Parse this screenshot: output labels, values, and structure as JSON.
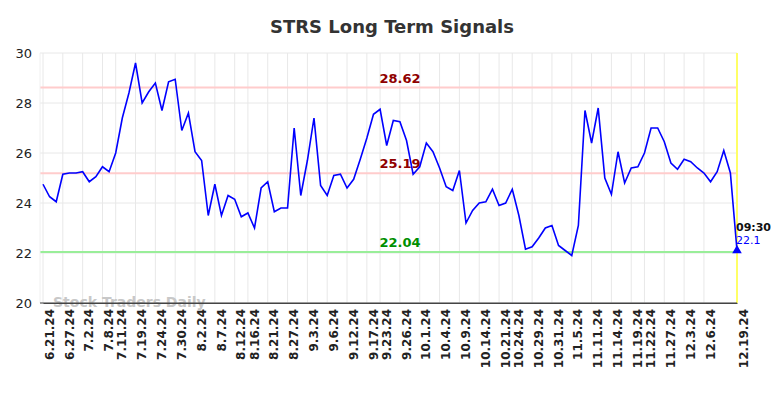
{
  "chart_data": {
    "type": "line",
    "title": "STRS Long Term Signals",
    "watermark": "Stock Traders Daily",
    "last_label": "09:30",
    "color": "#0000ff",
    "grid": true,
    "marker": "triangle",
    "ylim": [
      20,
      30
    ],
    "yticks": [
      20,
      22,
      24,
      26,
      28,
      30
    ],
    "reference_lines": [
      {
        "value": 28.62,
        "color": "#ffcccc"
      },
      {
        "value": 25.19,
        "color": "#ffcccc"
      },
      {
        "value": 22.04,
        "color": "#99ee99"
      }
    ],
    "categories": [
      "6.21.24",
      null,
      null,
      "6.27.24",
      null,
      null,
      "7.2.24",
      null,
      null,
      "7.8.24",
      null,
      "7.11.24",
      null,
      null,
      "7.19.24",
      null,
      null,
      "7.24.24",
      null,
      null,
      "7.30.24",
      null,
      null,
      "8.2.24",
      null,
      null,
      "8.7.24",
      null,
      null,
      "8.12.24",
      null,
      "8.16.24",
      null,
      null,
      "8.21.24",
      null,
      null,
      "8.27.24",
      null,
      null,
      "9.3.24",
      null,
      null,
      "9.6.24",
      null,
      null,
      "9.12.24",
      null,
      null,
      "9.17.24",
      null,
      "9.23.24",
      null,
      null,
      "9.26.24",
      null,
      null,
      "10.1.24",
      null,
      null,
      "10.4.24",
      null,
      null,
      "10.9.24",
      null,
      null,
      "10.14.24",
      null,
      null,
      "10.21.24",
      null,
      "10.24.24",
      null,
      null,
      "10.29.24",
      null,
      null,
      "10.31.24",
      null,
      null,
      "11.5.24",
      null,
      null,
      "11.11.24",
      null,
      null,
      "11.14.24",
      null,
      null,
      "11.19.24",
      null,
      "11.22.24",
      null,
      null,
      "11.27.24",
      null,
      null,
      "12.3.24",
      null,
      null,
      "12.6.24",
      null,
      null,
      null,
      null,
      "12.19.24"
    ],
    "values": [
      24.75,
      24.25,
      24.05,
      25.15,
      25.2,
      25.2,
      25.25,
      24.85,
      25.05,
      25.45,
      25.25,
      26.0,
      27.4,
      28.4,
      29.6,
      28.0,
      28.45,
      28.8,
      27.7,
      28.85,
      28.95,
      26.9,
      27.6,
      26.05,
      25.7,
      23.5,
      24.75,
      23.5,
      24.3,
      24.15,
      23.45,
      23.6,
      23.0,
      24.6,
      24.85,
      23.65,
      23.8,
      23.8,
      27.0,
      24.3,
      25.7,
      27.4,
      24.7,
      24.3,
      25.1,
      25.15,
      24.6,
      24.95,
      25.75,
      26.6,
      27.55,
      27.75,
      26.3,
      27.3,
      27.25,
      26.5,
      25.15,
      25.45,
      26.4,
      26.05,
      25.4,
      24.65,
      24.5,
      25.3,
      23.2,
      23.7,
      24.0,
      24.05,
      24.55,
      23.9,
      24.0,
      24.55,
      23.5,
      22.15,
      22.25,
      22.6,
      23.0,
      23.1,
      22.3,
      22.1,
      21.9,
      23.1,
      27.7,
      26.4,
      27.8,
      25.0,
      24.35,
      26.05,
      24.8,
      25.4,
      25.45,
      26.0,
      27.0,
      27.0,
      26.45,
      25.6,
      25.35,
      25.75,
      25.65,
      25.4,
      25.2,
      24.85,
      25.25,
      26.1,
      25.2,
      22.1
    ]
  }
}
